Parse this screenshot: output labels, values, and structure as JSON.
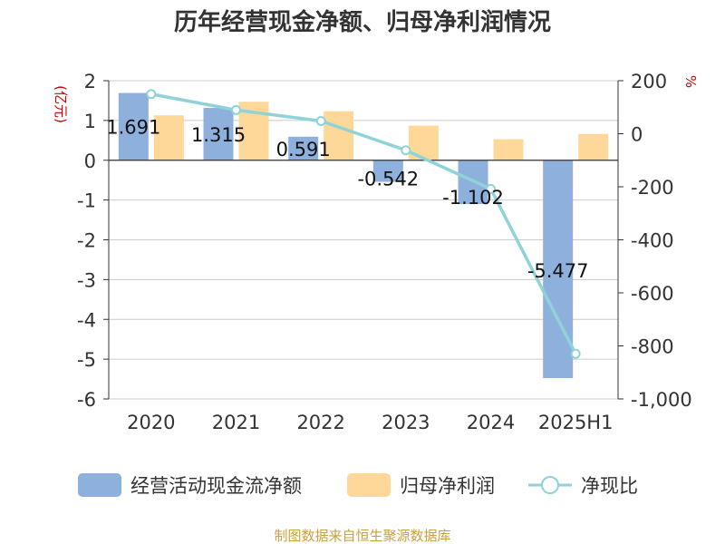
{
  "chart_data": {
    "type": "bar",
    "title": "历年经营现金净额、归母净利润情况",
    "categories": [
      "2020",
      "2021",
      "2022",
      "2023",
      "2024",
      "2025H1"
    ],
    "left_axis": {
      "unit_label": "(亿元)",
      "range": [
        -6,
        2
      ],
      "ticks": [
        "2",
        "1",
        "0",
        "-1",
        "-2",
        "-3",
        "-4",
        "-5",
        "-6"
      ]
    },
    "right_axis": {
      "unit_label": "%",
      "range": [
        -1000,
        200
      ],
      "ticks": [
        "200",
        "0",
        "-200",
        "-400",
        "-600",
        "-800",
        "-1,000"
      ]
    },
    "series": [
      {
        "name": "经营活动现金流净额",
        "type": "bar",
        "axis": "left",
        "color": "#8eb0dc",
        "values": [
          1.691,
          1.315,
          0.591,
          -0.542,
          -1.102,
          -5.477
        ],
        "labels": [
          "1.691",
          "1.315",
          "0.591",
          "-0.542",
          "-1.102",
          "-5.477"
        ]
      },
      {
        "name": "归母净利润",
        "type": "bar",
        "axis": "left",
        "color": "#fdd898",
        "values": [
          1.13,
          1.47,
          1.23,
          0.87,
          0.53,
          0.66
        ]
      },
      {
        "name": "净现比",
        "type": "line",
        "axis": "right",
        "color": "#8fd3d9",
        "values": [
          149.6,
          89.5,
          48.0,
          -62.3,
          -208.0,
          -829.8
        ]
      }
    ],
    "grid": true,
    "legend_position": "bottom"
  },
  "footer": {
    "source": "制图数据来自恒生聚源数据库"
  },
  "colors": {
    "title": "#333333",
    "axis_text": "#333333",
    "unit_label": "#cc0000",
    "source": "#c8a040",
    "grid": "#cccccc"
  }
}
